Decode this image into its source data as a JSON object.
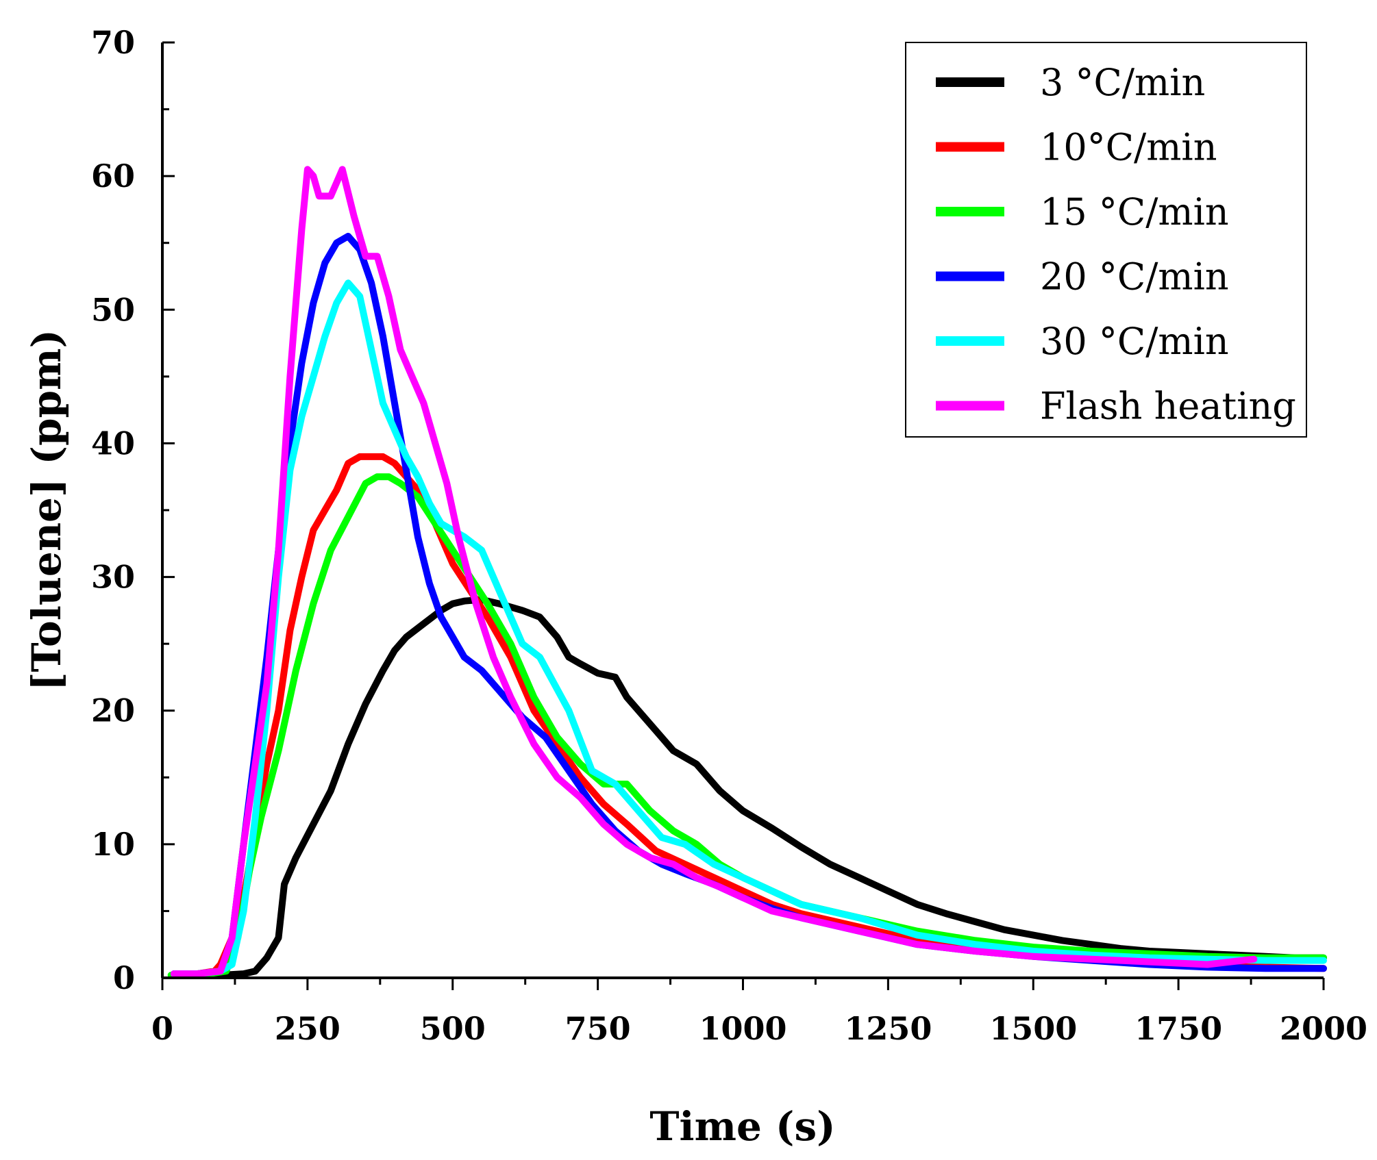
{
  "chart_data": {
    "type": "line",
    "title": "",
    "xlabel": "Time (s)",
    "ylabel": "[Toluene] (ppm)",
    "xlim": [
      0,
      2000
    ],
    "ylim": [
      0,
      70
    ],
    "xticks": [
      0,
      250,
      500,
      750,
      1000,
      1250,
      1500,
      1750,
      2000
    ],
    "yticks": [
      0,
      10,
      20,
      30,
      40,
      50,
      60,
      70
    ],
    "legend_position": "top-right",
    "grid": false,
    "series": [
      {
        "name": "3 °C/min",
        "color": "#000000",
        "x": [
          20,
          60,
          100,
          140,
          160,
          180,
          200,
          210,
          230,
          260,
          290,
          320,
          350,
          380,
          400,
          420,
          450,
          480,
          500,
          520,
          550,
          580,
          620,
          650,
          680,
          700,
          720,
          750,
          780,
          800,
          850,
          880,
          920,
          960,
          1000,
          1050,
          1100,
          1150,
          1200,
          1250,
          1300,
          1350,
          1400,
          1450,
          1500,
          1550,
          1600,
          1650,
          1700,
          1750,
          1800,
          1850,
          1900,
          1950,
          2000
        ],
        "y": [
          0.3,
          0.3,
          0.2,
          0.3,
          0.5,
          1.5,
          3,
          7,
          9,
          11.5,
          14,
          17.5,
          20.5,
          23,
          24.5,
          25.5,
          26.5,
          27.5,
          28,
          28.2,
          28.3,
          28,
          27.5,
          27,
          25.5,
          24,
          23.5,
          22.8,
          22.5,
          21,
          18.5,
          17,
          16,
          14,
          12.5,
          11.2,
          9.8,
          8.5,
          7.5,
          6.5,
          5.5,
          4.8,
          4.2,
          3.6,
          3.2,
          2.8,
          2.5,
          2.2,
          2.0,
          1.9,
          1.8,
          1.7,
          1.6,
          1.5,
          1.5
        ]
      },
      {
        "name": "10°C/min",
        "color": "#ff0000",
        "x": [
          20,
          60,
          90,
          100,
          120,
          140,
          160,
          180,
          200,
          220,
          240,
          260,
          280,
          300,
          320,
          340,
          360,
          380,
          400,
          420,
          440,
          460,
          480,
          500,
          530,
          560,
          600,
          640,
          680,
          720,
          760,
          800,
          850,
          900,
          950,
          1000,
          1050,
          1100,
          1200,
          1300,
          1400,
          1500,
          1600,
          1700,
          1800,
          1900,
          2000
        ],
        "y": [
          0.3,
          0.3,
          0.5,
          1,
          3,
          6,
          11,
          16,
          20,
          26,
          30,
          33.5,
          35,
          36.5,
          38.5,
          39,
          39,
          39,
          38.5,
          37.5,
          36.5,
          35,
          33,
          31,
          29,
          27,
          24,
          20,
          17.5,
          15,
          13,
          11.5,
          9.5,
          8.5,
          7.5,
          6.5,
          5.5,
          4.8,
          3.8,
          2.8,
          2.2,
          1.8,
          1.5,
          1.2,
          1.0,
          0.8,
          0.7
        ]
      },
      {
        "name": "15 °C/min",
        "color": "#00ff00",
        "x": [
          15,
          40,
          80,
          110,
          130,
          150,
          170,
          200,
          230,
          260,
          290,
          320,
          350,
          370,
          390,
          410,
          440,
          470,
          500,
          530,
          560,
          600,
          640,
          680,
          720,
          760,
          800,
          840,
          880,
          920,
          960,
          1000,
          1050,
          1100,
          1200,
          1300,
          1400,
          1500,
          1600,
          1700,
          1800,
          1900,
          2000
        ],
        "y": [
          0.2,
          0.3,
          0.3,
          0.5,
          3,
          8,
          12,
          17,
          23,
          28,
          32,
          34.5,
          37,
          37.5,
          37.5,
          37,
          36,
          34,
          32,
          30,
          28,
          25,
          21,
          18,
          16,
          14.5,
          14.5,
          12.5,
          11,
          10,
          8.5,
          7.5,
          6.5,
          5.5,
          4.5,
          3.5,
          2.8,
          2.3,
          2.0,
          1.8,
          1.6,
          1.5,
          1.5
        ]
      },
      {
        "name": "20 °C/min",
        "color": "#0000ff",
        "x": [
          20,
          60,
          100,
          120,
          140,
          160,
          180,
          200,
          220,
          240,
          260,
          280,
          300,
          320,
          340,
          360,
          380,
          400,
          420,
          440,
          460,
          480,
          500,
          520,
          550,
          580,
          620,
          660,
          700,
          740,
          780,
          820,
          860,
          900,
          950,
          1000,
          1050,
          1100,
          1200,
          1300,
          1400,
          1500,
          1600,
          1700,
          1800,
          1900,
          2000
        ],
        "y": [
          0.3,
          0.3,
          0.5,
          3,
          10,
          17,
          24,
          32,
          40,
          46,
          50.5,
          53.5,
          55,
          55.5,
          54.5,
          52,
          48,
          43,
          38,
          33,
          29.5,
          27,
          25.5,
          24,
          23,
          21.5,
          19.5,
          18,
          15.5,
          13,
          11,
          9.5,
          8.5,
          7.8,
          7,
          6,
          5.2,
          4.5,
          3.5,
          2.5,
          2.0,
          1.6,
          1.3,
          1.0,
          0.8,
          0.7,
          0.7
        ]
      },
      {
        "name": "30 °C/min",
        "color": "#00ffff",
        "x": [
          20,
          60,
          100,
          120,
          140,
          160,
          180,
          200,
          220,
          240,
          260,
          280,
          300,
          320,
          340,
          360,
          380,
          400,
          420,
          440,
          460,
          480,
          500,
          520,
          550,
          580,
          620,
          650,
          700,
          740,
          780,
          820,
          860,
          900,
          950,
          1000,
          1050,
          1100,
          1200,
          1300,
          1400,
          1500,
          1600,
          1700,
          1800,
          1900,
          2000
        ],
        "y": [
          0.3,
          0.3,
          0.5,
          1,
          5,
          12,
          20,
          30,
          38,
          42,
          45,
          48,
          50.5,
          52,
          51,
          47,
          43,
          41,
          39,
          37.5,
          35.5,
          34,
          33.5,
          33,
          32,
          29,
          25,
          24,
          20,
          15.5,
          14.5,
          12.5,
          10.5,
          10,
          8.5,
          7.5,
          6.5,
          5.5,
          4.5,
          3.2,
          2.5,
          2.0,
          1.7,
          1.5,
          1.4,
          1.3,
          1.3
        ]
      },
      {
        "name": "Flash heating",
        "color": "#ff00ff",
        "x": [
          20,
          60,
          100,
          120,
          140,
          160,
          180,
          200,
          220,
          240,
          250,
          260,
          270,
          290,
          310,
          330,
          350,
          370,
          390,
          410,
          430,
          450,
          470,
          490,
          510,
          540,
          570,
          600,
          640,
          680,
          720,
          760,
          800,
          840,
          880,
          920,
          960,
          1000,
          1050,
          1100,
          1200,
          1300,
          1400,
          1500,
          1600,
          1700,
          1800,
          1880
        ],
        "y": [
          0.3,
          0.3,
          0.5,
          3,
          10,
          16,
          22,
          32,
          45,
          56,
          60.5,
          60,
          58.5,
          58.5,
          60.5,
          57,
          54,
          54,
          51,
          47,
          45,
          43,
          40,
          37,
          33,
          28,
          24,
          21,
          17.5,
          15,
          13.5,
          11.5,
          10,
          9,
          8.5,
          7.5,
          6.8,
          6,
          5,
          4.5,
          3.5,
          2.5,
          2.0,
          1.6,
          1.4,
          1.2,
          1.0,
          1.4
        ]
      }
    ]
  }
}
